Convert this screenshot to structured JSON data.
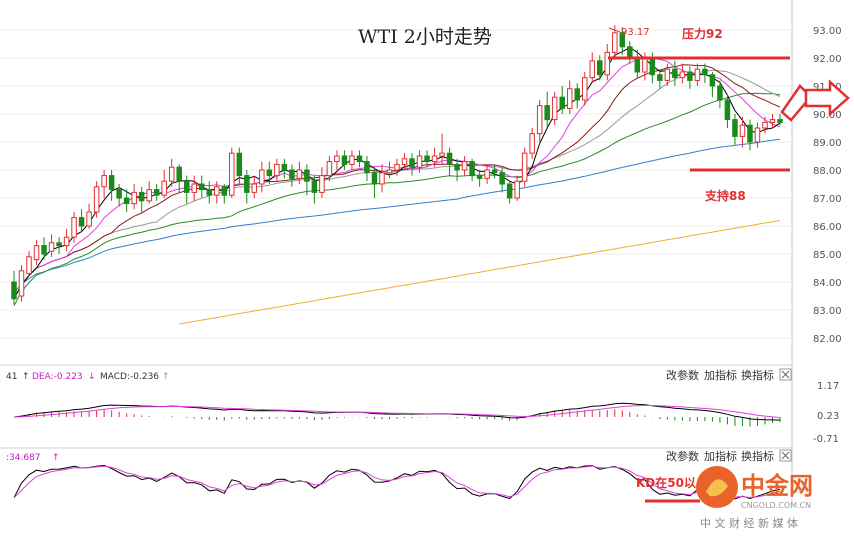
{
  "chart_data": [
    {
      "type": "candlestick",
      "title": "WTI 2小时走势",
      "y_ticks": [
        "93.00",
        "92.00",
        "91.00",
        "90.00",
        "89.00",
        "88.00",
        "87.00",
        "86.00",
        "85.00",
        "84.00",
        "83.00",
        "82.00"
      ],
      "ylim": [
        81.5,
        93.5
      ],
      "high_marker": "93.17",
      "annotations": {
        "resistance": {
          "label": "压力92",
          "value": 92
        },
        "support": {
          "label": "支持88",
          "value": 88
        }
      },
      "colors": {
        "up": "#e03030",
        "down": "#1a8a1a",
        "ma5": "#000000",
        "ma10": "#e040e0",
        "ma20": "#8a1a1a",
        "ma30": "#999999",
        "ma60": "#2a8a2a",
        "ma120": "#3080d0",
        "ma250": "#f0b030",
        "annotation": "#e03030"
      },
      "series_note": "",
      "candles": [
        [
          84.0,
          83.4,
          84.4,
          83.2
        ],
        [
          83.5,
          84.4,
          84.6,
          83.3
        ],
        [
          84.3,
          84.9,
          85.1,
          84.2
        ],
        [
          84.8,
          85.3,
          85.5,
          84.6
        ],
        [
          85.3,
          85.0,
          85.6,
          84.8
        ],
        [
          85.1,
          85.4,
          85.7,
          84.9
        ],
        [
          85.4,
          85.3,
          85.6,
          85.0
        ],
        [
          85.3,
          85.6,
          85.9,
          85.1
        ],
        [
          85.6,
          86.3,
          86.5,
          85.4
        ],
        [
          86.3,
          86.0,
          86.6,
          85.8
        ],
        [
          86.0,
          86.5,
          86.8,
          85.9
        ],
        [
          86.5,
          87.4,
          87.6,
          86.3
        ],
        [
          87.4,
          87.8,
          88.0,
          87.0
        ],
        [
          87.8,
          87.3,
          88.0,
          86.9
        ],
        [
          87.3,
          87.0,
          87.5,
          86.7
        ],
        [
          87.0,
          86.8,
          87.3,
          86.5
        ],
        [
          86.8,
          87.2,
          87.5,
          86.6
        ],
        [
          87.2,
          86.9,
          87.4,
          86.5
        ],
        [
          86.9,
          87.3,
          87.6,
          86.8
        ],
        [
          87.3,
          87.1,
          87.5,
          86.9
        ],
        [
          87.1,
          87.6,
          88.0,
          87.0
        ],
        [
          87.6,
          88.1,
          88.4,
          87.4
        ],
        [
          88.1,
          87.6,
          88.2,
          87.2
        ],
        [
          87.6,
          87.2,
          87.8,
          86.8
        ],
        [
          87.2,
          87.5,
          87.8,
          86.9
        ],
        [
          87.5,
          87.3,
          87.8,
          87.0
        ],
        [
          87.3,
          87.1,
          87.6,
          86.8
        ],
        [
          87.1,
          87.4,
          87.6,
          86.8
        ],
        [
          87.4,
          87.1,
          87.5,
          86.8
        ],
        [
          87.1,
          88.6,
          88.8,
          87.0
        ],
        [
          88.6,
          87.8,
          88.8,
          87.5
        ],
        [
          87.8,
          87.2,
          88.0,
          86.8
        ],
        [
          87.2,
          87.5,
          87.8,
          87.0
        ],
        [
          87.5,
          88.0,
          88.3,
          87.2
        ],
        [
          88.0,
          87.8,
          88.3,
          87.5
        ],
        [
          87.8,
          88.2,
          88.4,
          87.6
        ],
        [
          88.2,
          88.0,
          88.4,
          87.7
        ],
        [
          88.0,
          87.7,
          88.2,
          87.4
        ],
        [
          87.7,
          88.0,
          88.3,
          87.5
        ],
        [
          88.0,
          87.6,
          88.2,
          87.1
        ],
        [
          87.6,
          87.2,
          87.8,
          86.8
        ],
        [
          87.2,
          87.8,
          88.1,
          87.0
        ],
        [
          87.8,
          88.3,
          88.5,
          87.6
        ],
        [
          88.3,
          88.5,
          88.7,
          88.0
        ],
        [
          88.5,
          88.2,
          88.7,
          88.0
        ],
        [
          88.2,
          88.5,
          88.7,
          88.0
        ],
        [
          88.5,
          88.3,
          88.7,
          88.1
        ],
        [
          88.3,
          87.9,
          88.5,
          87.6
        ],
        [
          87.9,
          87.5,
          88.1,
          87.0
        ],
        [
          87.5,
          87.9,
          88.2,
          87.2
        ],
        [
          87.9,
          88.0,
          88.3,
          87.7
        ],
        [
          88.0,
          88.2,
          88.4,
          87.8
        ],
        [
          88.2,
          88.4,
          88.6,
          88.0
        ],
        [
          88.4,
          88.1,
          88.6,
          87.8
        ],
        [
          88.1,
          88.5,
          88.7,
          87.9
        ],
        [
          88.5,
          88.3,
          88.7,
          88.1
        ],
        [
          88.3,
          88.5,
          88.8,
          88.1
        ],
        [
          88.5,
          88.6,
          89.3,
          88.2
        ],
        [
          88.6,
          88.2,
          88.8,
          87.8
        ],
        [
          88.2,
          88.0,
          88.4,
          87.6
        ],
        [
          88.0,
          88.3,
          88.5,
          87.8
        ],
        [
          88.3,
          87.8,
          88.4,
          87.6
        ],
        [
          87.8,
          87.7,
          88.0,
          87.4
        ],
        [
          87.7,
          88.0,
          88.2,
          87.5
        ],
        [
          88.0,
          87.9,
          88.2,
          87.7
        ],
        [
          87.9,
          87.5,
          88.1,
          87.2
        ],
        [
          87.5,
          87.0,
          87.6,
          86.8
        ],
        [
          87.0,
          87.6,
          87.8,
          86.9
        ],
        [
          87.6,
          88.6,
          88.8,
          87.4
        ],
        [
          88.6,
          89.3,
          89.5,
          88.4
        ],
        [
          89.3,
          90.3,
          90.5,
          89.0
        ],
        [
          90.3,
          89.8,
          90.8,
          89.5
        ],
        [
          89.8,
          90.6,
          90.8,
          89.6
        ],
        [
          90.6,
          90.2,
          91.0,
          90.0
        ],
        [
          90.2,
          90.9,
          91.2,
          90.0
        ],
        [
          90.9,
          90.5,
          91.1,
          90.2
        ],
        [
          90.5,
          91.3,
          91.5,
          90.3
        ],
        [
          91.3,
          91.9,
          92.2,
          91.1
        ],
        [
          91.9,
          91.4,
          92.1,
          91.2
        ],
        [
          91.4,
          92.2,
          92.5,
          91.2
        ],
        [
          92.2,
          92.9,
          93.17,
          92.0
        ],
        [
          92.9,
          92.4,
          93.1,
          92.1
        ],
        [
          92.4,
          92.0,
          92.6,
          91.8
        ],
        [
          92.0,
          91.5,
          92.3,
          91.3
        ],
        [
          91.5,
          92.0,
          92.2,
          91.2
        ],
        [
          92.0,
          91.4,
          92.2,
          91.1
        ],
        [
          91.4,
          91.2,
          91.6,
          90.9
        ],
        [
          91.2,
          91.6,
          91.8,
          91.0
        ],
        [
          91.6,
          91.3,
          91.9,
          91.0
        ],
        [
          91.3,
          91.5,
          91.8,
          91.1
        ],
        [
          91.5,
          91.2,
          91.7,
          90.9
        ],
        [
          91.2,
          91.6,
          91.8,
          91.0
        ],
        [
          91.6,
          91.4,
          91.8,
          91.1
        ],
        [
          91.4,
          91.0,
          91.5,
          90.6
        ],
        [
          91.0,
          90.5,
          91.2,
          90.2
        ],
        [
          90.5,
          89.8,
          90.7,
          89.5
        ],
        [
          89.8,
          89.2,
          90.0,
          88.9
        ],
        [
          89.2,
          89.6,
          89.9,
          88.8
        ],
        [
          89.6,
          89.0,
          89.8,
          88.7
        ],
        [
          89.0,
          89.5,
          89.7,
          88.8
        ],
        [
          89.5,
          89.7,
          89.9,
          89.3
        ],
        [
          89.7,
          89.8,
          90.0,
          89.5
        ],
        [
          89.8,
          89.7,
          90.0,
          89.6
        ]
      ]
    },
    {
      "type": "line",
      "title": "MACD",
      "legend": {
        "dif_tail": "41",
        "dea_label": "DEA:-0.223",
        "macd_label": "MACD:-0.236"
      },
      "y_ticks": [
        "1.17",
        "0.23",
        "-0.71"
      ],
      "ylim": [
        -0.95,
        1.45
      ],
      "buttons": [
        "改参数",
        "加指标",
        "换指标"
      ]
    },
    {
      "type": "line",
      "title": "KD",
      "legend": {
        "k_tail": ":34.687"
      },
      "buttons": [
        "改参数",
        "加指标",
        "换指标"
      ],
      "annotation": "KD在50以"
    }
  ],
  "watermark": {
    "brand": "中金网",
    "site": "CNGOLD.COM.CN",
    "slogan": "中 文 财 经 新 媒 体"
  }
}
